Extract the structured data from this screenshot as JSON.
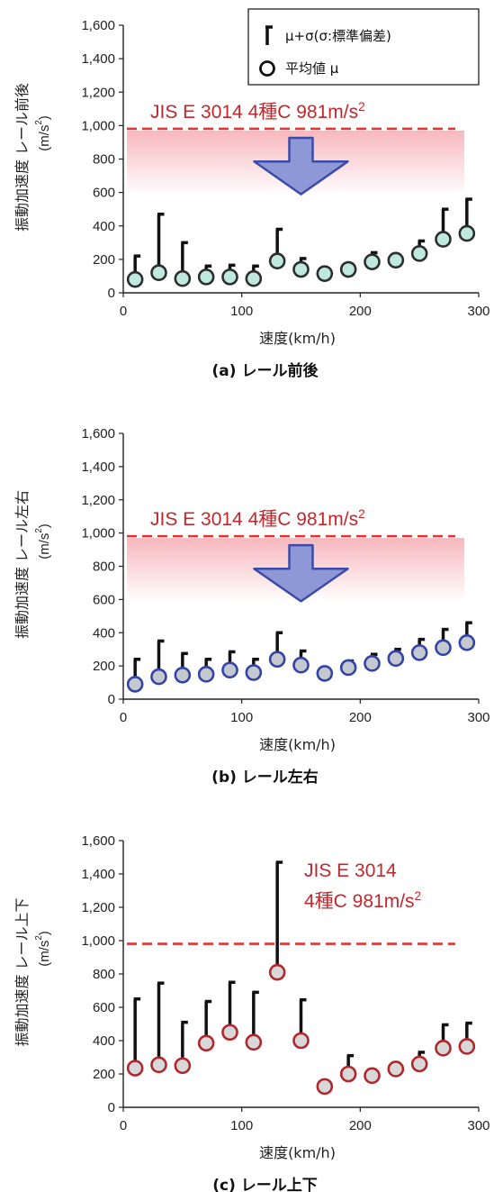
{
  "legend": {
    "sd_label": "μ+σ(σ:標準偏差)",
    "mean_label": "平均値 μ"
  },
  "colors": {
    "ref_line": "#e23434",
    "ref_text": "#c0282d",
    "band_start": "#f7b7bd",
    "arrow_fill": "#8e98d6",
    "arrow_stroke": "#3c4aa8",
    "panel_a_marker_fill": "#bfe9df",
    "panel_a_marker_stroke": "#2d2d2d",
    "panel_b_marker_fill": "#c4c8cf",
    "panel_b_marker_stroke": "#3344a6",
    "panel_c_marker_fill": "#d8d8d8",
    "panel_c_marker_stroke": "#b0282d"
  },
  "chart_data": [
    {
      "type": "scatter",
      "caption": "(a) レール前後",
      "ylabel": "振動加速度 レール前後",
      "ylabel_unit": "(m/s2)",
      "xlabel": "速度(km/h)",
      "xlim": [
        0,
        300
      ],
      "ylim": [
        0,
        1600
      ],
      "xticks": [
        "0",
        "100",
        "200",
        "300"
      ],
      "yticks": [
        "0",
        "200",
        "400",
        "600",
        "800",
        "1,000",
        "1,200",
        "1,400",
        "1,600"
      ],
      "reference_line": 981,
      "reference_label": "JIS E 3014 4種C 981m/s2",
      "band": [
        600,
        970
      ],
      "show_legend": true,
      "x": [
        10,
        30,
        50,
        70,
        90,
        110,
        130,
        150,
        170,
        190,
        210,
        230,
        250,
        270,
        290
      ],
      "mean": [
        80,
        120,
        85,
        95,
        95,
        85,
        190,
        140,
        115,
        140,
        185,
        195,
        235,
        320,
        355
      ],
      "mean_plus_sd": [
        220,
        470,
        300,
        160,
        165,
        160,
        380,
        205,
        115,
        140,
        240,
        195,
        310,
        500,
        560
      ]
    },
    {
      "type": "scatter",
      "caption": "(b) レール左右",
      "ylabel": "振動加速度 レール左右",
      "ylabel_unit": "(m/s2)",
      "xlabel": "速度(km/h)",
      "xlim": [
        0,
        300
      ],
      "ylim": [
        0,
        1600
      ],
      "xticks": [
        "0",
        "100",
        "200",
        "300"
      ],
      "yticks": [
        "0",
        "200",
        "400",
        "600",
        "800",
        "1,000",
        "1,200",
        "1,400",
        "1,600"
      ],
      "reference_line": 981,
      "reference_label": "JIS E 3014 4種C 981m/s2",
      "band": [
        600,
        970
      ],
      "show_legend": false,
      "x": [
        10,
        30,
        50,
        70,
        90,
        110,
        130,
        150,
        170,
        190,
        210,
        230,
        250,
        270,
        290
      ],
      "mean": [
        90,
        135,
        145,
        150,
        175,
        160,
        240,
        205,
        155,
        190,
        215,
        245,
        280,
        310,
        340
      ],
      "mean_plus_sd": [
        240,
        350,
        275,
        240,
        285,
        240,
        400,
        290,
        155,
        230,
        270,
        300,
        360,
        420,
        460
      ]
    },
    {
      "type": "scatter",
      "caption": "(c) レール上下",
      "ylabel": "振動加速度 レール上下",
      "ylabel_unit": "(m/s2)",
      "xlabel": "速度(km/h)",
      "xlim": [
        0,
        300
      ],
      "ylim": [
        0,
        1600
      ],
      "xticks": [
        "0",
        "100",
        "200",
        "300"
      ],
      "yticks": [
        "0",
        "200",
        "400",
        "600",
        "800",
        "1,000",
        "1,200",
        "1,400",
        "1,600"
      ],
      "reference_line": 981,
      "reference_label_lines": [
        "JIS E 3014",
        "4種C 981m/s2"
      ],
      "band": null,
      "show_legend": false,
      "x": [
        10,
        30,
        50,
        70,
        90,
        110,
        130,
        150,
        170,
        190,
        210,
        230,
        250,
        270,
        290
      ],
      "mean": [
        235,
        255,
        250,
        385,
        450,
        390,
        810,
        400,
        125,
        200,
        190,
        230,
        260,
        355,
        365
      ],
      "mean_plus_sd": [
        650,
        745,
        510,
        635,
        750,
        690,
        1470,
        645,
        125,
        310,
        190,
        230,
        330,
        495,
        505
      ]
    }
  ]
}
